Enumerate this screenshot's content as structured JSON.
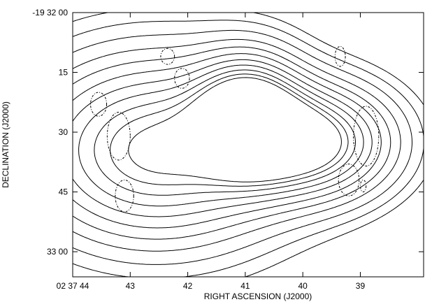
{
  "chart_data": {
    "type": "contour",
    "title": "",
    "xlabel": "RIGHT ASCENSION (J2000)",
    "ylabel": "DECLINATION (J2000)",
    "x_ticks": [
      {
        "label": "02 37 44",
        "ra_sec": 44
      },
      {
        "label": "43",
        "ra_sec": 43
      },
      {
        "label": "42",
        "ra_sec": 42
      },
      {
        "label": "41",
        "ra_sec": 41
      },
      {
        "label": "40",
        "ra_sec": 40
      },
      {
        "label": "39",
        "ra_sec": 39
      }
    ],
    "y_ticks": [
      {
        "label": "-19 32 00",
        "dec_arcsec": 0
      },
      {
        "label": "15",
        "dec_arcsec": 15
      },
      {
        "label": "30",
        "dec_arcsec": 30
      },
      {
        "label": "45",
        "dec_arcsec": 45
      },
      {
        "label": "33 00",
        "dec_arcsec": 60
      }
    ],
    "ra_range_sec": [
      44,
      37.9
    ],
    "dec_range_arcsec": [
      0,
      66.3
    ],
    "grid": false,
    "sources": [
      {
        "ra_sec": 42.55,
        "dec_arcsec": 34.5,
        "dra": 1.45,
        "ddec": 15.0,
        "levels": 11
      },
      {
        "ra_sec": 40.95,
        "dec_arcsec": 26.0,
        "dra": 0.6,
        "ddec": 9.5,
        "levels": 5
      },
      {
        "ra_sec": 39.85,
        "dec_arcsec": 32.5,
        "dra": 0.9,
        "ddec": 9.0,
        "levels": 7
      }
    ],
    "negative_contours": [
      {
        "ra_sec": 42.35,
        "dec_arcsec": 11.0,
        "dra": 0.12,
        "ddec": 2.0
      },
      {
        "ra_sec": 42.1,
        "dec_arcsec": 16.5,
        "dra": 0.13,
        "ddec": 2.5
      },
      {
        "ra_sec": 43.55,
        "dec_arcsec": 23.0,
        "dra": 0.14,
        "ddec": 3.0
      },
      {
        "ra_sec": 43.2,
        "dec_arcsec": 31.0,
        "dra": 0.2,
        "ddec": 6.0
      },
      {
        "ra_sec": 43.1,
        "dec_arcsec": 46.0,
        "dra": 0.16,
        "ddec": 4.0
      },
      {
        "ra_sec": 39.35,
        "dec_arcsec": 11.0,
        "dra": 0.09,
        "ddec": 2.5
      },
      {
        "ra_sec": 38.9,
        "dec_arcsec": 31.0,
        "dra": 0.22,
        "ddec": 7.5
      },
      {
        "ra_sec": 39.2,
        "dec_arcsec": 42.0,
        "dra": 0.18,
        "ddec": 4.0
      },
      {
        "ra_sec": 38.95,
        "dec_arcsec": 43.5,
        "dra": 0.05,
        "ddec": 1.5
      }
    ]
  }
}
